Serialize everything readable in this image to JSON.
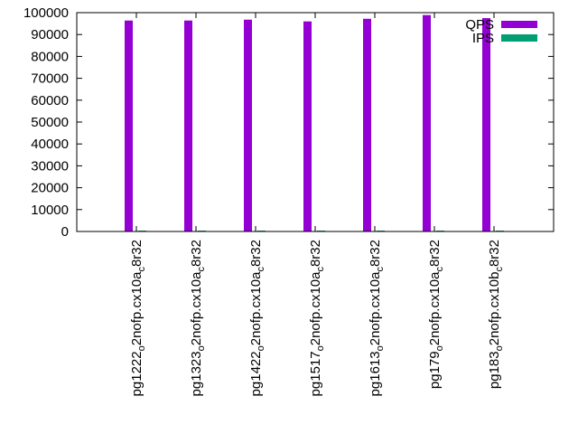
{
  "chart_data": {
    "type": "bar",
    "title": "",
    "xlabel": "",
    "ylabel": "",
    "ylim": [
      0,
      100000
    ],
    "yticks": [
      0,
      10000,
      20000,
      30000,
      40000,
      50000,
      60000,
      70000,
      80000,
      90000,
      100000
    ],
    "categories": [
      "pg1222_o2nofp.cx10a_c8r32",
      "pg1323_o2nofp.cx10a_c8r32",
      "pg1422_o2nofp.cx10a_c8r32",
      "pg1517_o2nofp.cx10a_c8r32",
      "pg1613_o2nofp.cx10a_c8r32",
      "pg179_o2nofp.cx10a_c8r32",
      "pg183_o2nofp.cx10b_c8r32"
    ],
    "series": [
      {
        "name": "QPS",
        "color": "#9400d3",
        "values": [
          96400,
          96400,
          96800,
          96000,
          97200,
          98900,
          97500
        ]
      },
      {
        "name": "IPS",
        "color": "#009e73",
        "values": [
          400,
          400,
          400,
          400,
          400,
          400,
          400
        ]
      }
    ],
    "legend": "top-right",
    "grid": false
  }
}
